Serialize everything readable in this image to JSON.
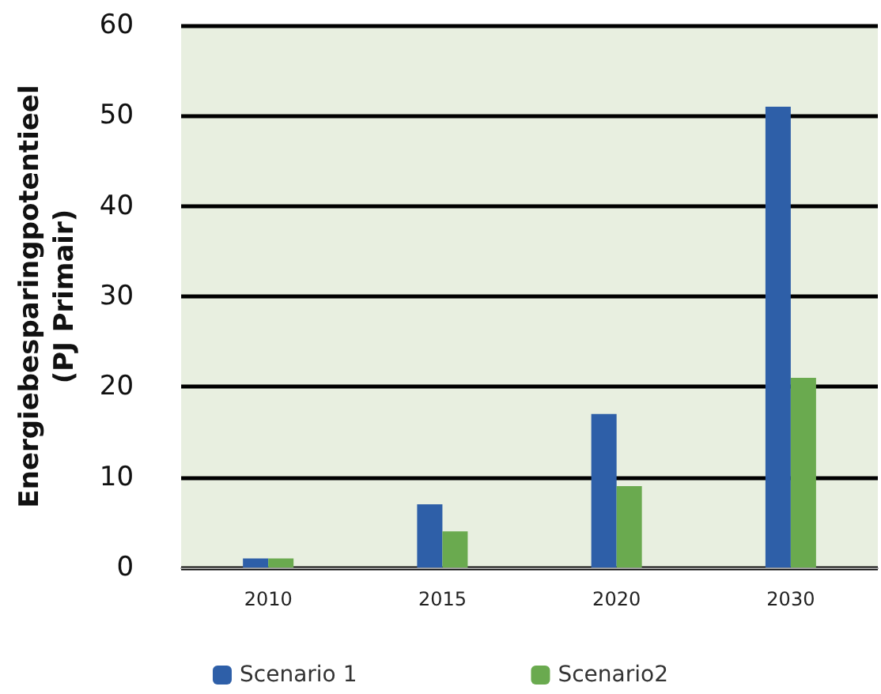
{
  "chart_data": {
    "type": "bar",
    "ylabel": "Energiebesparingpotentieel\n(PJ Primair)",
    "categories": [
      "2010",
      "2015",
      "2020",
      "2030"
    ],
    "series": [
      {
        "name": "Scenario 1",
        "color": "#2e5fa8",
        "values": [
          1,
          7,
          17,
          51
        ]
      },
      {
        "name": "Scenario2",
        "color": "#6aaa4f",
        "values": [
          1,
          4,
          9,
          21
        ]
      }
    ],
    "ylim": [
      0,
      60
    ],
    "yticks": [
      0,
      10,
      20,
      30,
      40,
      50,
      60
    ],
    "grid": "y",
    "legend": "bottom"
  }
}
